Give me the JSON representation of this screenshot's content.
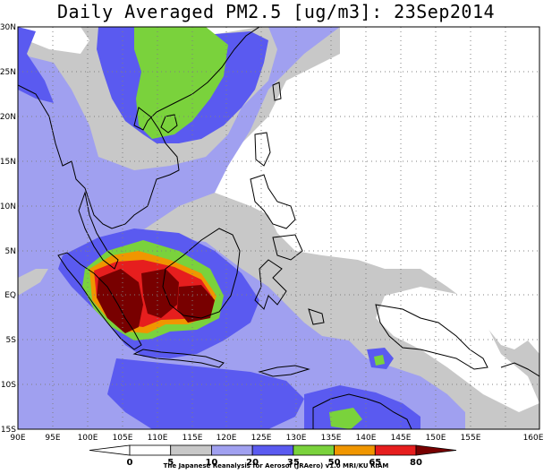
{
  "title": "Daily Averaged PM2.5 [ug/m3]: 23Sep2014",
  "lat_labels": [
    "30N",
    "25N",
    "20N",
    "15N",
    "10N",
    "5N",
    "EQ",
    "5S",
    "10S",
    "15S"
  ],
  "lon_labels": [
    "90E",
    "95E",
    "100E",
    "105E",
    "110E",
    "115E",
    "120E",
    "125E",
    "130E",
    "135E",
    "140E",
    "145E",
    "150E",
    "155E",
    "160E"
  ],
  "colorbar": {
    "levels": [
      "0",
      "5",
      "10",
      "20",
      "35",
      "50",
      "65",
      "80"
    ],
    "colors": [
      "#ffffff",
      "#ffffff",
      "#c8c8c8",
      "#a0a0f0",
      "#5a5af0",
      "#7ad23c",
      "#f09600",
      "#e61e1e",
      "#780000"
    ]
  },
  "credit": "The Japanese Reanalysis for Aerosol (JRAero) v1.0 MRI/KU RIAM"
}
